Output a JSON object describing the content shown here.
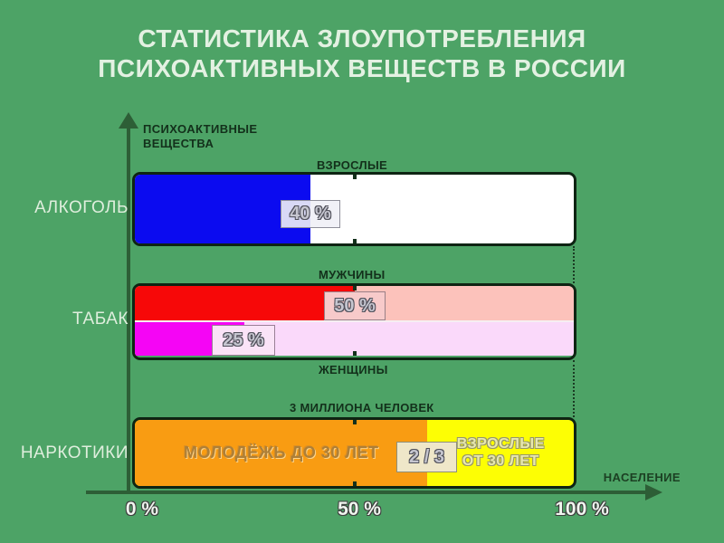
{
  "title": {
    "line1": "СТАТИСТИКА ЗЛОУПОТРЕБЛЕНИЯ",
    "line2": "ПСИХОАКТИВНЫХ ВЕЩЕСТВ В РОССИИ"
  },
  "axes": {
    "y_title_line1": "ПСИХОАКТИВНЫЕ",
    "y_title_line2": "ВЕЩЕСТВА",
    "x_title": "НАСЕЛЕНИЕ",
    "ticks": [
      "0 %",
      "50 %",
      "100 %"
    ]
  },
  "colors": {
    "background": "#4da366",
    "axis": "#2d5e36",
    "dark_label": "#13301b",
    "light_label": "#dfeedd"
  },
  "chart_data": {
    "type": "bar",
    "orientation": "horizontal",
    "title": "СТАТИСТИКА ЗЛОУПОТРЕБЛЕНИЯ ПСИХОАКТИВНЫХ ВЕЩЕСТВ В РОССИИ",
    "xlabel": "НАСЕЛЕНИЕ",
    "ylabel": "ПСИХОАКТИВНЫЕ ВЕЩЕСТВА",
    "xlim": [
      0,
      100
    ],
    "x_ticks": [
      "0 %",
      "50 %",
      "100 %"
    ],
    "grid": false,
    "legend": "none",
    "groups": [
      {
        "category": "АЛКОГОЛЬ",
        "bars": [
          {
            "group_label": "ВЗРОСЛЫЕ",
            "label_position": "above",
            "value_pct": 40,
            "value_label": "40 %",
            "fill_color": "#0b0bf0",
            "rest_color": "#ffffff"
          }
        ]
      },
      {
        "category": "ТАБАК",
        "bars": [
          {
            "group_label": "МУЖЧИНЫ",
            "label_position": "above",
            "value_pct": 50,
            "value_label": "50 %",
            "fill_color": "#f70808",
            "rest_color": "#fcc2bb"
          },
          {
            "group_label": "ЖЕНЩИНЫ",
            "label_position": "below",
            "value_pct": 25,
            "value_label": "25 %",
            "fill_color": "#f505f5",
            "rest_color": "#fad9fa"
          }
        ]
      },
      {
        "category": "НАРКОТИКИ",
        "bars": [
          {
            "group_label": "3 МИЛЛИОНА ЧЕЛОВЕК",
            "label_position": "above",
            "value_pct": 66.7,
            "value_label": "2 / 3",
            "fill_color": "#f99c12",
            "rest_color": "#fdfe04",
            "segment_text": "МОЛОДЁЖЬ ДО 30 ЛЕТ",
            "rest_text_line1": "ВЗРОСЛЫЕ",
            "rest_text_line2": "ОТ 30 ЛЕТ"
          }
        ]
      }
    ]
  }
}
